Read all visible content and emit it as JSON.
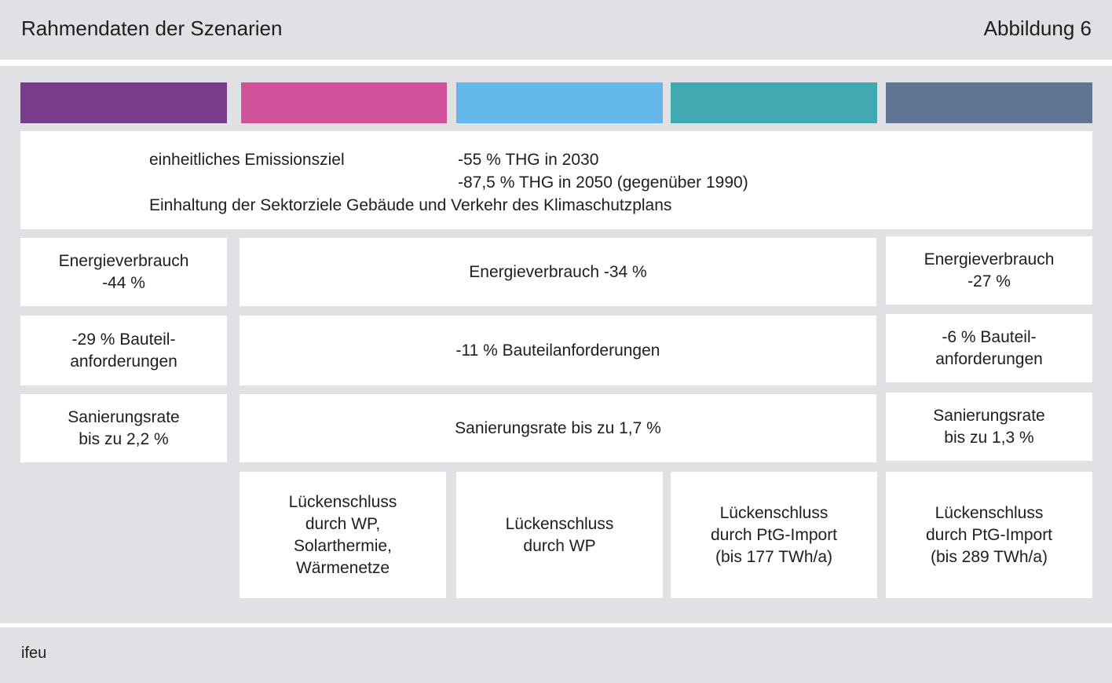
{
  "header": {
    "title": "Rahmendaten der Szenarien",
    "figure_label": "Abbildung 6"
  },
  "scenario_colors": [
    "#773c8a",
    "#d0529a",
    "#64b8e9",
    "#42a8b2",
    "#627493"
  ],
  "target_box": {
    "label": "einheitliches Emissionsziel",
    "goal_2030": "-55 % THG in 2030",
    "goal_2050": "-87,5 % THG in 2050 (gegenüber 1990)",
    "sector_note": "Einhaltung der Sektorziele Gebäude und Verkehr des Klimaschutzplans"
  },
  "rows": {
    "energy": {
      "left": "Energieverbrauch\n-44 %",
      "middle": "Energieverbrauch -34 %",
      "right": "Energieverbrauch\n-27 %"
    },
    "components": {
      "left": "-29 % Bauteil-\nanforderungen",
      "middle": "-11 % Bauteilanforderungen",
      "right": "-6 % Bauteil-\nanforderungen"
    },
    "renovation": {
      "left": "Sanierungsrate\nbis zu 2,2 %",
      "middle": "Sanierungsrate bis zu 1,7 %",
      "right": "Sanierungsrate\nbis zu 1,3 %"
    }
  },
  "gap_closure": {
    "col2": "Lückenschluss\ndurch WP,\nSolarthermie,\nWärmenetze",
    "col3": "Lückenschluss\ndurch WP",
    "col4": "Lückenschluss\ndurch PtG-Import\n(bis 177 TWh/a)",
    "col5": "Lückenschluss\ndurch PtG-Import\n(bis 289 TWh/a)"
  },
  "footer": {
    "source": "ifeu"
  }
}
